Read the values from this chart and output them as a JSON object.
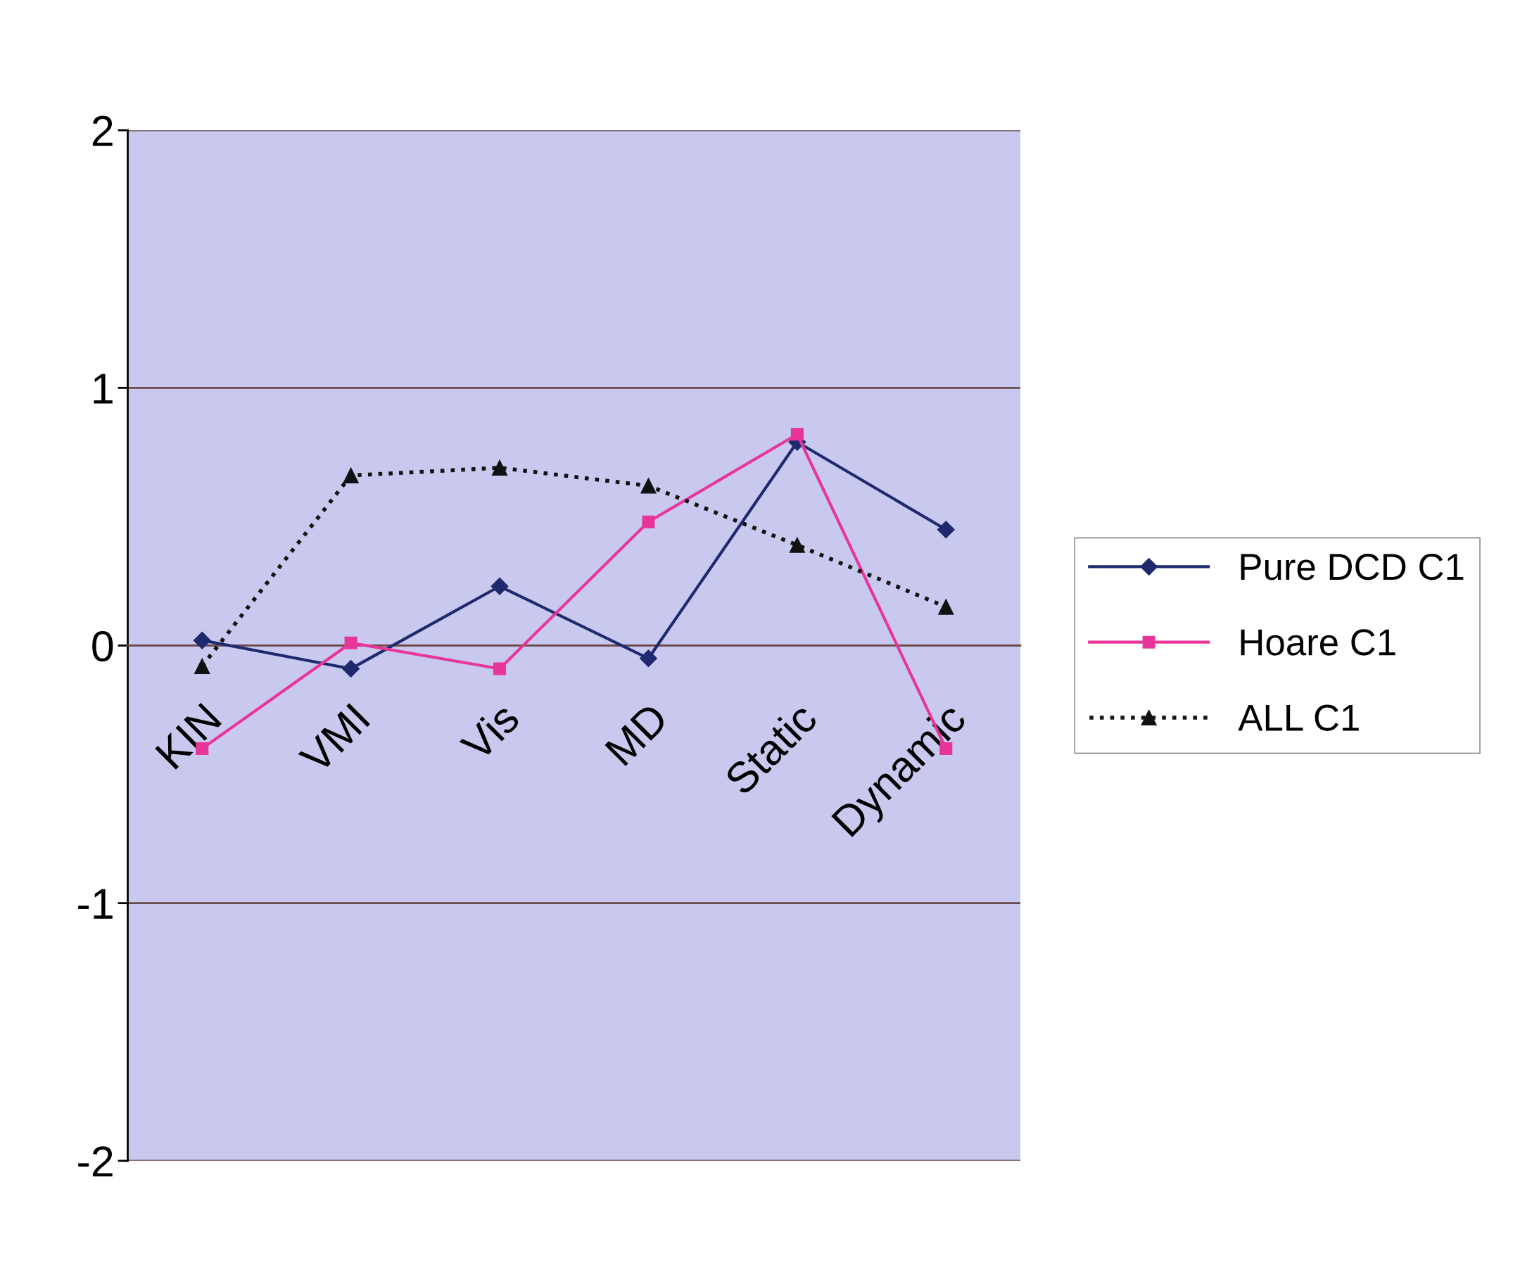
{
  "chart_data": {
    "type": "line",
    "categories": [
      "KIN",
      "VMI",
      "Vis",
      "MD",
      "Static",
      "Dynamic"
    ],
    "series": [
      {
        "name": "Pure DCD C1",
        "color": "#1f2a6e",
        "marker": "diamond",
        "line_style": "solid",
        "values": [
          0.02,
          -0.09,
          0.23,
          -0.05,
          0.79,
          0.45
        ]
      },
      {
        "name": "Hoare C1",
        "color": "#e8359a",
        "marker": "square",
        "line_style": "solid",
        "values": [
          -0.4,
          0.01,
          -0.09,
          0.48,
          0.82,
          -0.4
        ]
      },
      {
        "name": "ALL C1",
        "color": "#111111",
        "marker": "triangle",
        "line_style": "dotted",
        "values": [
          -0.08,
          0.66,
          0.69,
          0.62,
          0.39,
          0.15
        ]
      }
    ],
    "ylim": [
      -2,
      2
    ],
    "yticks": [
      -2,
      -1,
      0,
      1,
      2
    ],
    "grid": "y",
    "legend": "right"
  }
}
